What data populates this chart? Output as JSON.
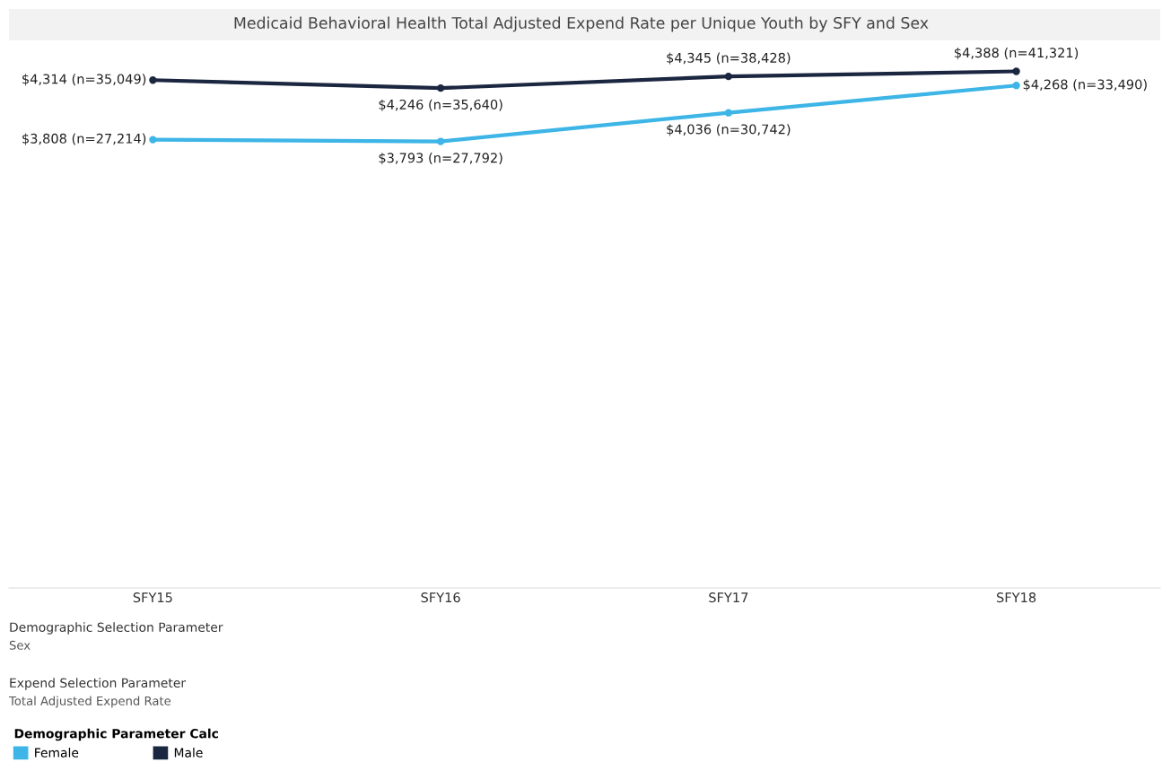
{
  "chart_data": {
    "type": "line",
    "title": "Medicaid Behavioral Health Total Adjusted Expend Rate per Unique Youth by SFY and Sex",
    "categories": [
      "SFY15",
      "SFY16",
      "SFY17",
      "SFY18"
    ],
    "series": [
      {
        "name": "Female",
        "color": "#3db5e6",
        "values": [
          3808,
          3793,
          4036,
          4268
        ],
        "value_labels": [
          "$3,808 (n=27,214)",
          "$3,793 (n=27,792)",
          "$4,036 (n=30,742)",
          "$4,268 (n=33,490)"
        ]
      },
      {
        "name": "Male",
        "color": "#1b2640",
        "values": [
          4314,
          4246,
          4345,
          4388
        ],
        "value_labels": [
          "$4,314 (n=35,049)",
          "$4,246 (n=35,640)",
          "$4,345 (n=38,428)",
          "$4,388 (n=41,321)"
        ]
      }
    ],
    "tick_labels": "x",
    "marker": "circle",
    "line_style": "solid",
    "legend": "bottom left",
    "legend_title": "Demographic Parameter Calc",
    "annotations": [
      "Demographic Selection Parameter",
      "Sex",
      "Expend Selection Parameter",
      "Total Adjusted Expend Rate"
    ]
  }
}
